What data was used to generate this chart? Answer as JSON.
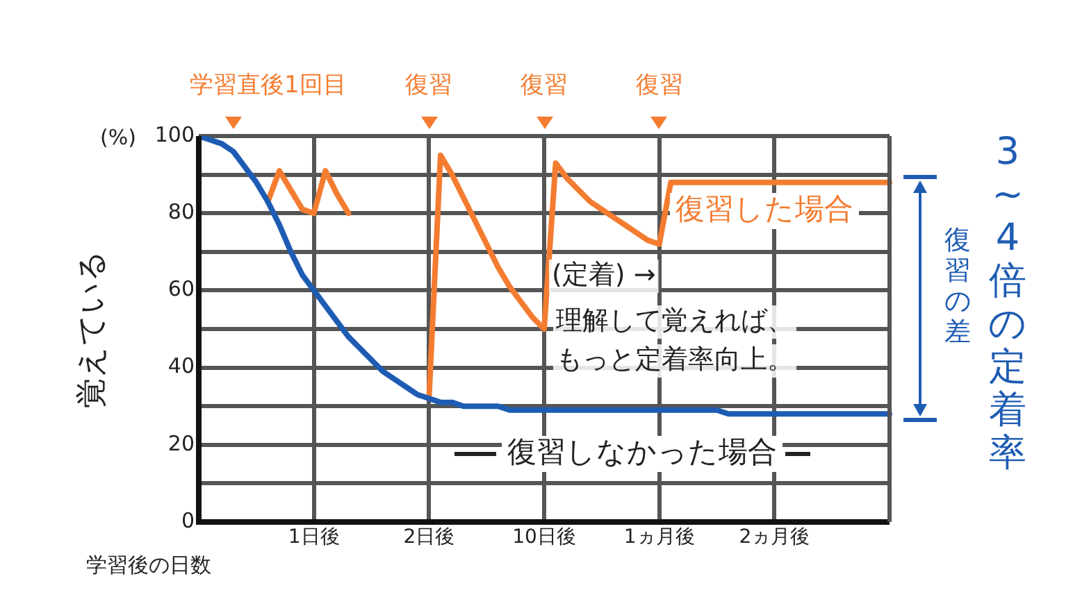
{
  "chart_data": {
    "type": "line",
    "ylabel": "覚えている",
    "xlabel": "学習後の日数",
    "categories": [
      null,
      null,
      null,
      null,
      null,
      null,
      null,
      null,
      null,
      null,
      "1日後",
      null,
      null,
      null,
      null,
      null,
      null,
      null,
      null,
      null,
      "2日後",
      null,
      null,
      null,
      null,
      null,
      null,
      null,
      null,
      null,
      "10日後",
      null,
      null,
      null,
      null,
      null,
      null,
      null,
      null,
      null,
      "1ヵ月後",
      null,
      null,
      null,
      null,
      null,
      null,
      null,
      null,
      null,
      "2ヵ月後",
      null,
      null,
      null,
      null,
      null,
      null,
      null,
      null,
      null,
      null
    ],
    "ylim": [
      0,
      100
    ],
    "yticks": [
      0,
      {
        "value": 10,
        "label": null
      },
      20,
      {
        "value": 30,
        "label": null
      },
      40,
      {
        "value": 50,
        "label": null
      },
      60,
      {
        "value": 70,
        "label": null
      },
      80,
      {
        "value": 90,
        "label": null
      },
      100
    ],
    "grid": true,
    "legend": false,
    "marker": "none",
    "line_style": "solid",
    "series": [
      {
        "name": "復習しなかった場合",
        "color": "#1e5cb3",
        "values": [
          100,
          99,
          98,
          96,
          92,
          88,
          83,
          77,
          70,
          64,
          60,
          56,
          52,
          48,
          45,
          42,
          39,
          37,
          35,
          33,
          32,
          31,
          31,
          30,
          30,
          30,
          30,
          29,
          29,
          29,
          29,
          29,
          29,
          29,
          29,
          29,
          29,
          29,
          29,
          29,
          29,
          29,
          29,
          29,
          29,
          29,
          28,
          28,
          28,
          28,
          28,
          28,
          28,
          28,
          28,
          28,
          28,
          28,
          28,
          28,
          28
        ]
      },
      {
        "name": "復習した場合",
        "color": "#f47c30",
        "values": [
          null,
          null,
          null,
          null,
          null,
          null,
          83,
          91,
          86,
          81,
          80,
          91,
          85,
          80,
          null,
          null,
          null,
          null,
          null,
          null,
          32,
          95,
          90,
          84,
          78,
          72,
          66,
          61,
          57,
          53,
          50,
          93,
          89,
          86,
          83,
          81,
          79,
          77,
          75,
          73,
          72,
          88,
          88,
          88,
          88,
          88,
          88,
          88,
          88,
          88,
          88,
          88,
          88,
          88,
          88,
          88,
          88,
          88,
          88,
          88,
          88
        ]
      }
    ],
    "annotations": [
      "学習直後1回目",
      "復習",
      "復習",
      "復習",
      "(%)",
      "(定着) →",
      "理解して覚えれば、",
      "もっと定着率向上。",
      "復習の差",
      "3~4倍の定着率"
    ]
  }
}
